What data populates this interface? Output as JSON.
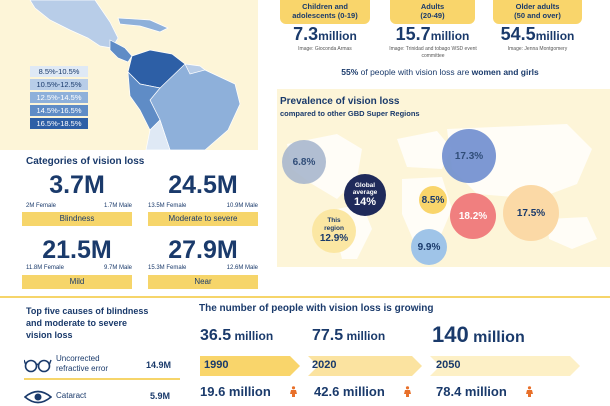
{
  "legend": [
    "8.5%-10.5%",
    "10.5%-12.5%",
    "12.5%-14.5%",
    "14.5%-16.5%",
    "16.5%-18.5%"
  ],
  "legend_colors": [
    "#dfe9f5",
    "#b8cde8",
    "#8eb0da",
    "#5f8cc6",
    "#2d5fa6"
  ],
  "age_groups": [
    {
      "label_line1": "Children and",
      "label_line2": "adolescents (0-19)",
      "value": "7.3",
      "unit": "million",
      "credit": "Image: Gioconda Armas"
    },
    {
      "label_line1": "Adults",
      "label_line2": "(20-49)",
      "value": "15.7",
      "unit": "million",
      "credit": "Image: Trinidad and tobago WSD event committee"
    },
    {
      "label_line1": "Older adults",
      "label_line2": "(50 and over)",
      "value": "54.5",
      "unit": "million",
      "credit": "Image: Jenna Montgomery"
    }
  ],
  "women_note": {
    "pct": "55%",
    "text": " of people with vision loss are ",
    "bold_end": "women and girls"
  },
  "prevalence": {
    "title": "Prevalence of vision loss",
    "subtitle": "compared to other GBD Super Regions",
    "bubbles": [
      {
        "value": "6.8%"
      },
      {
        "line1": "Global",
        "line2": "average",
        "value": "14%"
      },
      {
        "value": "8.5%"
      },
      {
        "value": "17.3%"
      },
      {
        "line1": "This",
        "line2": "region",
        "value": "12.9%"
      },
      {
        "value": "9.9%"
      },
      {
        "value": "18.2%"
      },
      {
        "value": "17.5%"
      }
    ]
  },
  "categories": {
    "title": "Categories of vision loss",
    "items": [
      {
        "total": "3.7M",
        "female": "2M Female",
        "male": "1.7M Male",
        "label": "Blindness"
      },
      {
        "total": "24.5M",
        "female": "13.5M Female",
        "male": "10.9M Male",
        "label": "Moderate to severe"
      },
      {
        "total": "21.5M",
        "female": "11.8M Female",
        "male": "9.7M Male",
        "label": "Mild"
      },
      {
        "total": "27.9M",
        "female": "15.3M Female",
        "male": "12.6M Male",
        "label": "Near"
      }
    ]
  },
  "causes": {
    "title_line1": "Top five causes of blindness",
    "title_line2": "and moderate to severe",
    "title_line3": "vision loss",
    "items": [
      {
        "line1": "Uncorrected",
        "line2": "refractive error",
        "value": "14.9M",
        "icon": "glasses-icon"
      },
      {
        "line1": "Cataract",
        "line2": "",
        "value": "5.9M",
        "icon": "eye-icon"
      }
    ]
  },
  "growth": {
    "title": "The number of people with vision loss is growing",
    "points": [
      {
        "value": "36.5",
        "unit": "million",
        "year": "1990",
        "sub": "19.6 million"
      },
      {
        "value": "77.5",
        "unit": "million",
        "year": "2020",
        "sub": "42.6 million"
      },
      {
        "value": "140",
        "unit": "million",
        "year": "2050",
        "sub": "78.4 million"
      }
    ]
  }
}
